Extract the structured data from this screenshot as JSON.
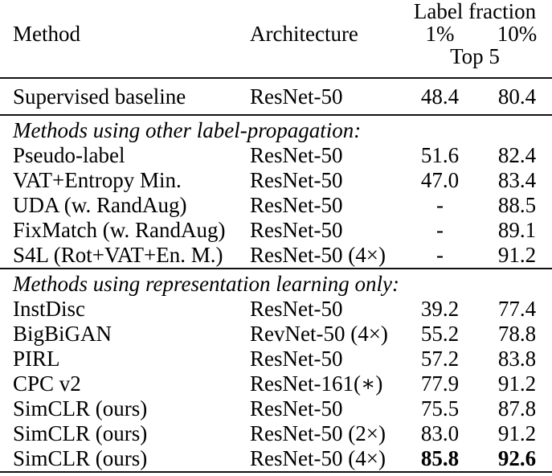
{
  "table": {
    "header": {
      "method_label": "Method",
      "architecture_label": "Architecture",
      "span_label": "Label fraction",
      "col_1pct": "1%",
      "col_10pct": "10%",
      "sub_span_label": "Top 5"
    },
    "sections": [
      {
        "rows": [
          {
            "method": "Supervised baseline",
            "arch": "ResNet-50",
            "pct1": "48.4",
            "pct10": "80.4"
          }
        ]
      },
      {
        "label": "Methods using other label-propagation:",
        "rows": [
          {
            "method": "Pseudo-label",
            "arch": "ResNet-50",
            "pct1": "51.6",
            "pct10": "82.4"
          },
          {
            "method": "VAT+Entropy Min.",
            "arch": "ResNet-50",
            "pct1": "47.0",
            "pct10": "83.4"
          },
          {
            "method": "UDA (w. RandAug)",
            "arch": "ResNet-50",
            "pct1": "-",
            "pct10": "88.5"
          },
          {
            "method": "FixMatch (w. RandAug)",
            "arch": "ResNet-50",
            "pct1": "-",
            "pct10": "89.1"
          },
          {
            "method": "S4L (Rot+VAT+En. M.)",
            "arch": "ResNet-50 (4×)",
            "pct1": "-",
            "pct10": "91.2"
          }
        ]
      },
      {
        "label": "Methods using representation learning only:",
        "rows": [
          {
            "method": "InstDisc",
            "arch": "ResNet-50",
            "pct1": "39.2",
            "pct10": "77.4"
          },
          {
            "method": "BigBiGAN",
            "arch": "RevNet-50 (4×)",
            "pct1": "55.2",
            "pct10": "78.8"
          },
          {
            "method": "PIRL",
            "arch": "ResNet-50",
            "pct1": "57.2",
            "pct10": "83.8"
          },
          {
            "method": "CPC v2",
            "arch": "ResNet-161(∗)",
            "pct1": "77.9",
            "pct10": "91.2"
          },
          {
            "method": "SimCLR (ours)",
            "arch": "ResNet-50",
            "pct1": "75.5",
            "pct10": "87.8"
          },
          {
            "method": "SimCLR (ours)",
            "arch": "ResNet-50 (2×)",
            "pct1": "83.0",
            "pct10": "91.2"
          },
          {
            "method": "SimCLR (ours)",
            "arch": "ResNet-50 (4×)",
            "pct1": "85.8",
            "pct10": "92.6",
            "bold": true
          }
        ]
      }
    ]
  }
}
